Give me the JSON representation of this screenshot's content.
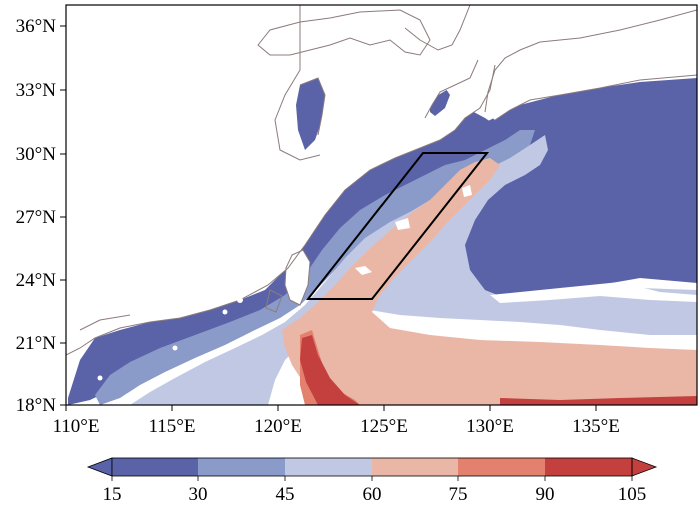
{
  "map": {
    "lon_ticks": [
      "110°E",
      "115°E",
      "120°E",
      "125°E",
      "130°E",
      "135°E"
    ],
    "lat_ticks": [
      "36°N",
      "33°N",
      "30°N",
      "27°N",
      "24°N",
      "21°N",
      "18°N"
    ],
    "lon_range": [
      110,
      140
    ],
    "lat_range": [
      18,
      37
    ],
    "box_corners_lonlat": [
      [
        121.3,
        23.0
      ],
      [
        124.4,
        23.0
      ],
      [
        130.0,
        30.0
      ],
      [
        126.8,
        30.0
      ]
    ],
    "land_color": "#ffffff",
    "coastline_color": "#8c7b7b"
  },
  "colorbar": {
    "levels": [
      "15",
      "30",
      "45",
      "60",
      "75",
      "90",
      "105"
    ],
    "colors": [
      "#5a62a8",
      "#8a9ac9",
      "#c0c8e4",
      "#eab7a7",
      "#e4806e",
      "#c4403f"
    ],
    "extend": "both"
  }
}
